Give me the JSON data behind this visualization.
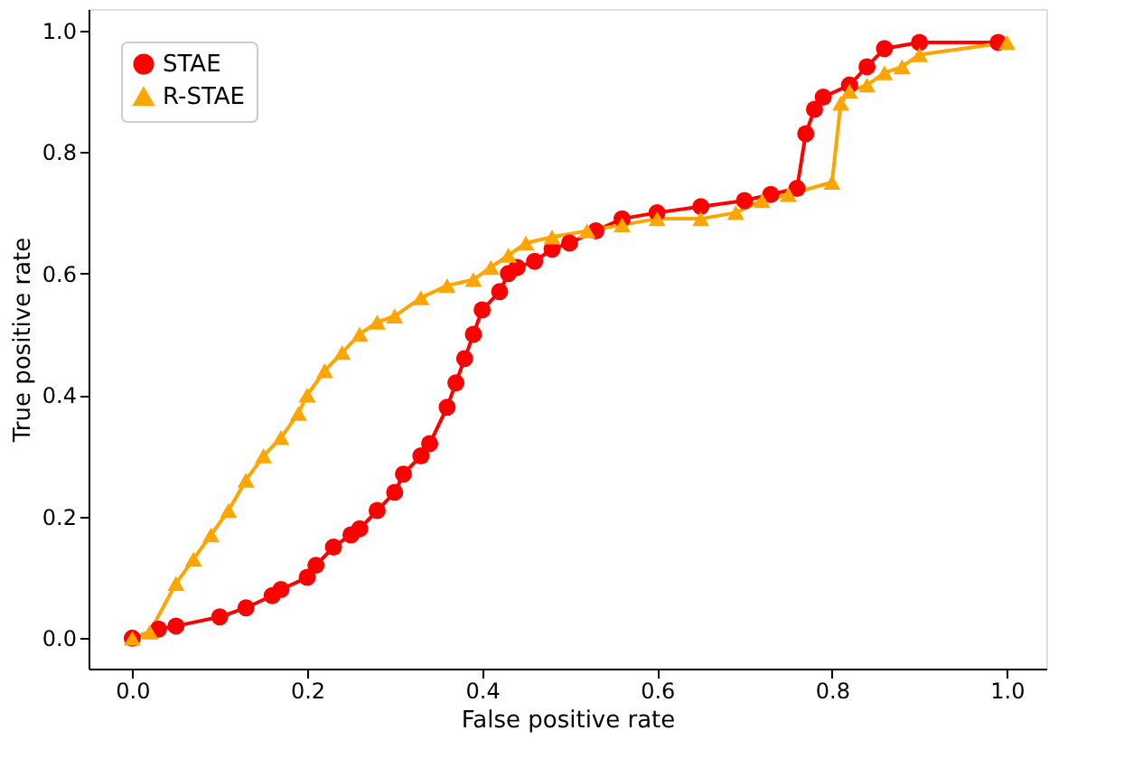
{
  "chart_data": {
    "type": "line",
    "xlabel": "False positive rate",
    "ylabel": "True positive rate",
    "xlim": [
      -0.05,
      1.045
    ],
    "ylim": [
      -0.05,
      1.035
    ],
    "xticks": [
      {
        "value": 0,
        "label": "0.0"
      },
      0.2,
      0.4,
      0.6,
      0.8,
      {
        "value": 1,
        "label": "1.0"
      }
    ],
    "yticks": [
      {
        "value": 0,
        "label": "0.0"
      },
      0.2,
      0.4,
      0.6,
      0.8,
      {
        "value": 1,
        "label": "1.0"
      }
    ],
    "grid": false,
    "legend": "top left",
    "series": [
      {
        "name": "STAE",
        "color": "#ff0000",
        "marker": "circle",
        "x": [
          0,
          0.03,
          0.05,
          0.1,
          0.13,
          0.16,
          0.17,
          0.2,
          0.21,
          0.23,
          0.25,
          0.26,
          0.28,
          0.3,
          0.31,
          0.33,
          0.34,
          0.36,
          0.37,
          0.38,
          0.39,
          0.4,
          0.42,
          0.43,
          0.44,
          0.46,
          0.48,
          0.5,
          0.53,
          0.56,
          0.6,
          0.65,
          0.7,
          0.73,
          0.76,
          0.77,
          0.78,
          0.79,
          0.82,
          0.84,
          0.86,
          0.9,
          0.99
        ],
        "values": [
          0,
          0.015,
          0.02,
          0.035,
          0.05,
          0.07,
          0.08,
          0.1,
          0.12,
          0.15,
          0.17,
          0.18,
          0.21,
          0.24,
          0.27,
          0.3,
          0.32,
          0.38,
          0.42,
          0.46,
          0.5,
          0.54,
          0.57,
          0.6,
          0.61,
          0.62,
          0.64,
          0.65,
          0.67,
          0.69,
          0.7,
          0.71,
          0.72,
          0.73,
          0.74,
          0.83,
          0.87,
          0.89,
          0.91,
          0.94,
          0.97,
          0.98,
          0.98
        ]
      },
      {
        "name": "R-STAE",
        "color": "#ffa500",
        "marker": "triangle",
        "x": [
          0,
          0.02,
          0.05,
          0.07,
          0.09,
          0.11,
          0.13,
          0.15,
          0.17,
          0.19,
          0.2,
          0.22,
          0.24,
          0.26,
          0.28,
          0.3,
          0.33,
          0.36,
          0.39,
          0.41,
          0.43,
          0.45,
          0.48,
          0.52,
          0.56,
          0.6,
          0.65,
          0.69,
          0.72,
          0.75,
          0.8,
          0.81,
          0.82,
          0.84,
          0.86,
          0.88,
          0.9,
          1.0
        ],
        "values": [
          0,
          0.01,
          0.09,
          0.13,
          0.17,
          0.21,
          0.26,
          0.3,
          0.33,
          0.37,
          0.4,
          0.44,
          0.47,
          0.5,
          0.52,
          0.53,
          0.56,
          0.58,
          0.59,
          0.61,
          0.63,
          0.65,
          0.66,
          0.67,
          0.68,
          0.69,
          0.69,
          0.7,
          0.72,
          0.73,
          0.75,
          0.88,
          0.9,
          0.91,
          0.93,
          0.94,
          0.96,
          0.98
        ]
      }
    ]
  }
}
